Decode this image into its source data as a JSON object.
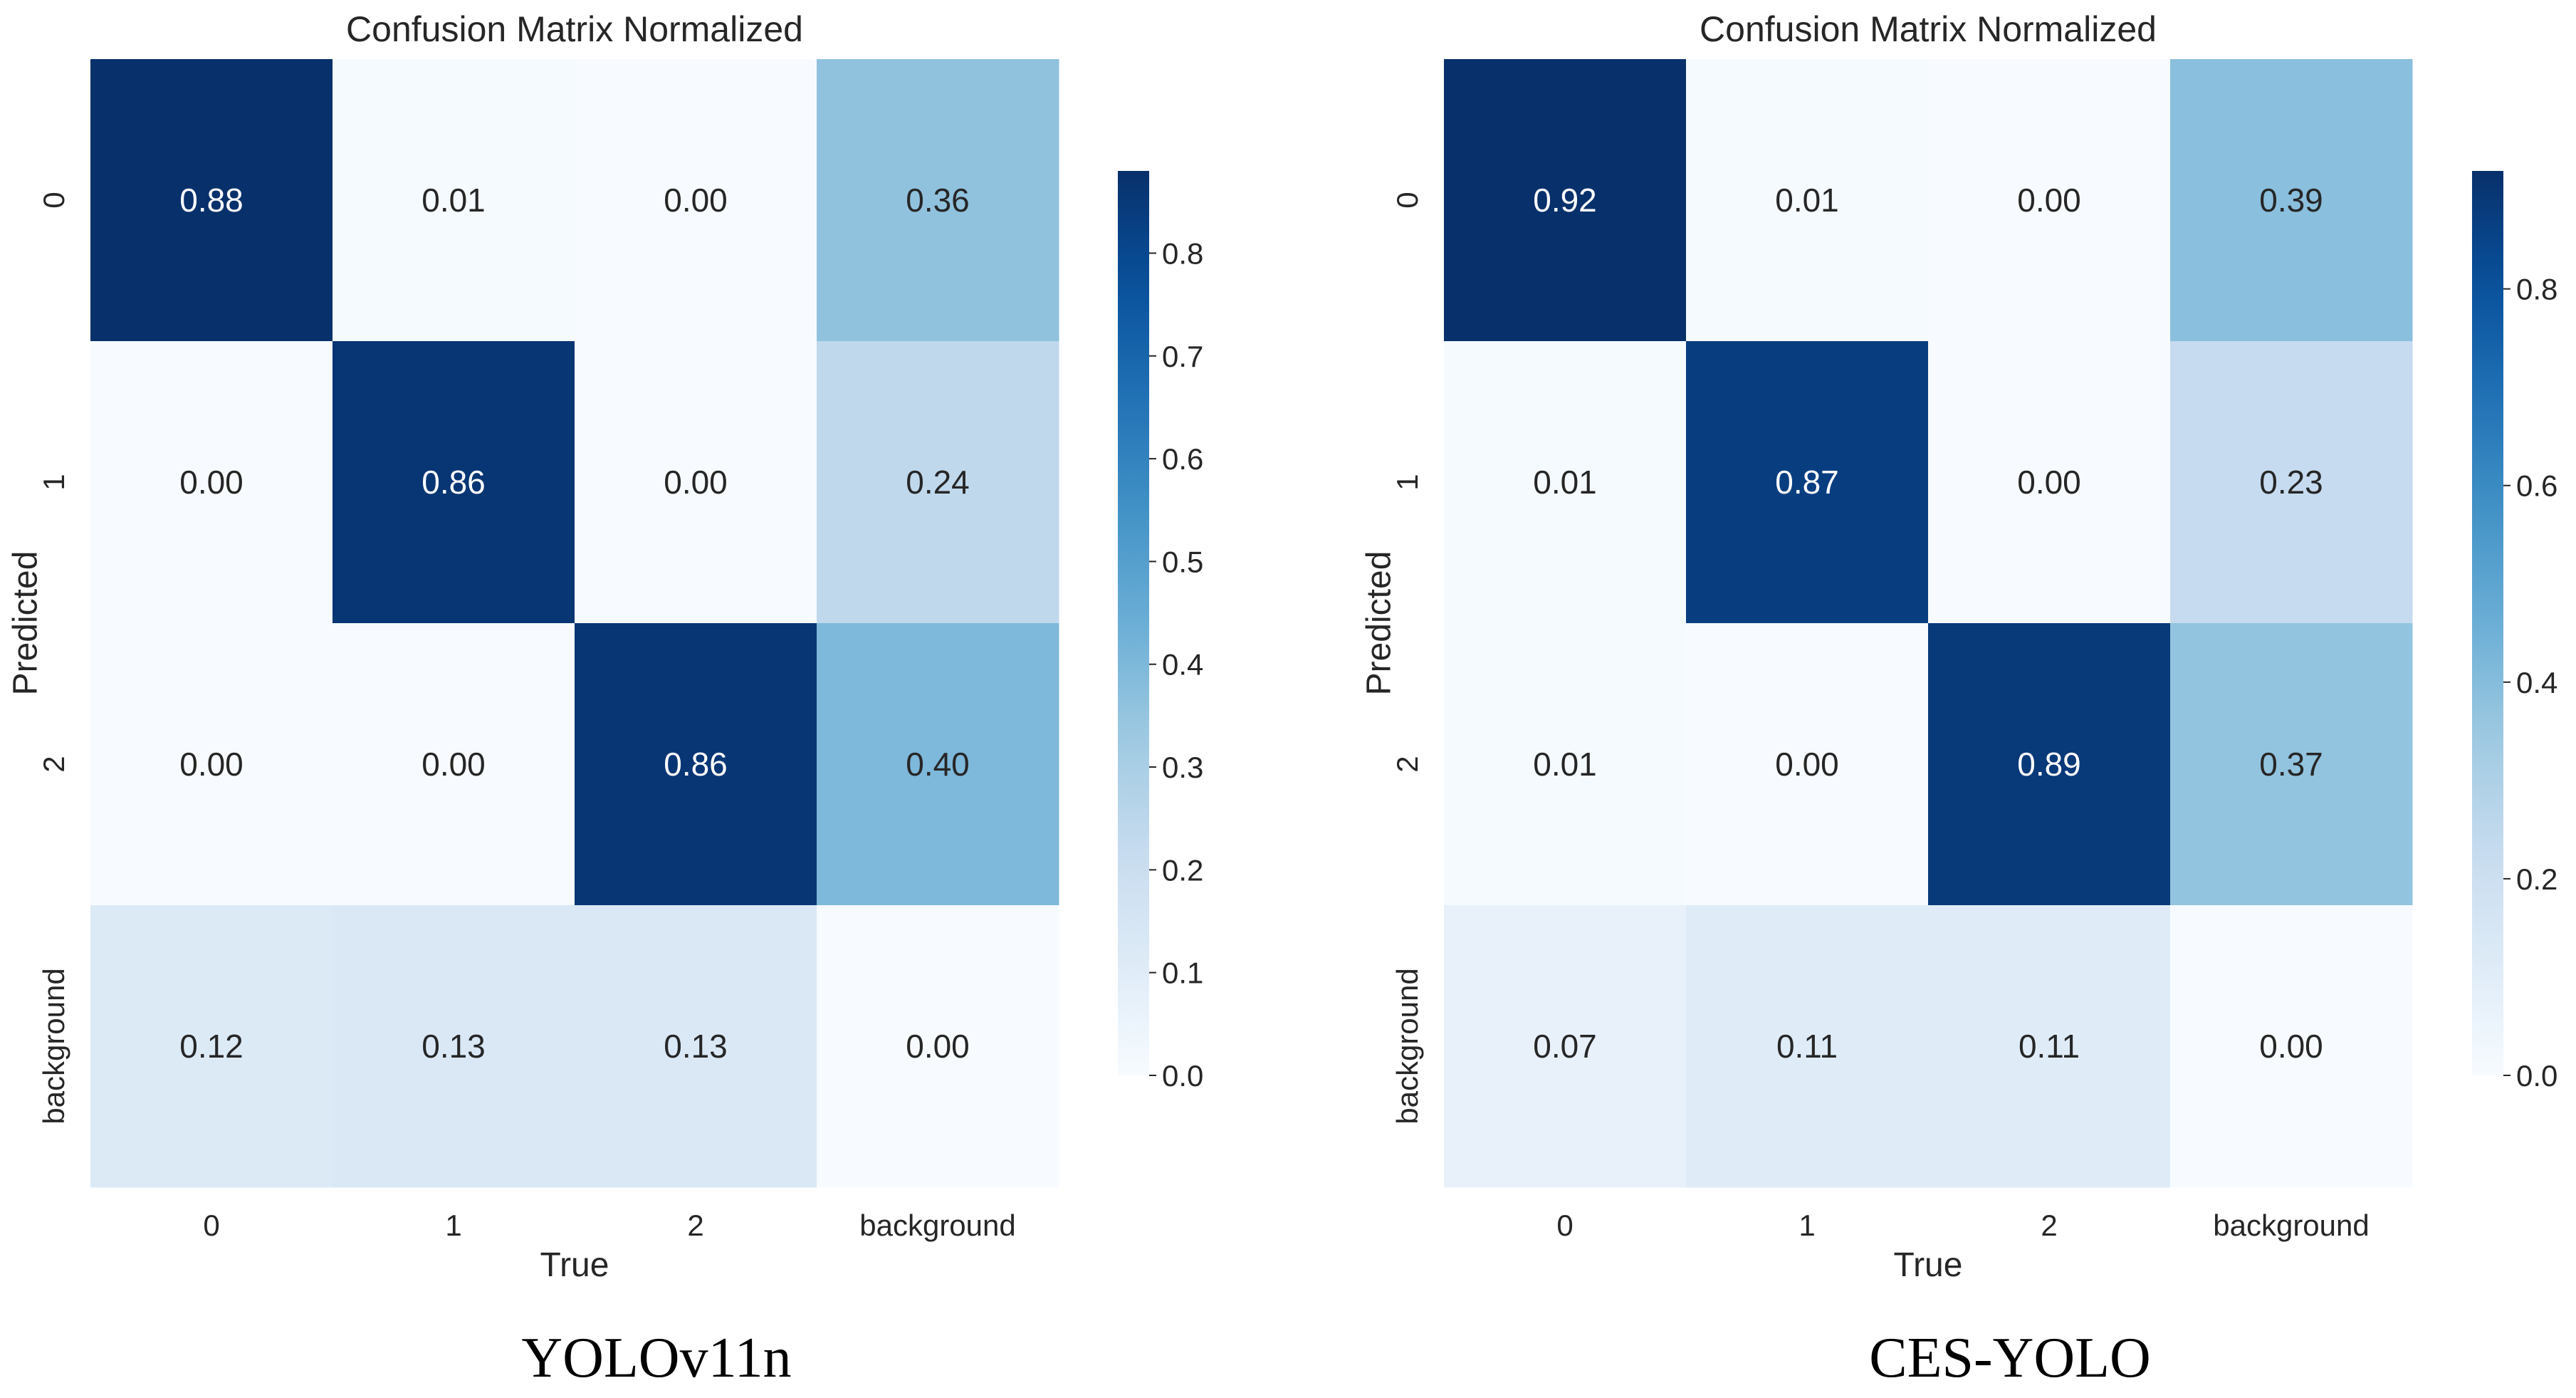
{
  "chart_data": [
    {
      "type": "heatmap",
      "title": "Confusion Matrix Normalized",
      "caption": "YOLOv11n",
      "xlabel": "True",
      "ylabel": "Predicted",
      "x_categories": [
        "0",
        "1",
        "2",
        "background"
      ],
      "y_categories": [
        "0",
        "1",
        "2",
        "background"
      ],
      "values": [
        [
          0.88,
          0.01,
          0.0,
          0.36
        ],
        [
          0.0,
          0.86,
          0.0,
          0.24
        ],
        [
          0.0,
          0.0,
          0.86,
          0.4
        ],
        [
          0.12,
          0.13,
          0.13,
          0.0
        ]
      ],
      "colormap": "Blues",
      "colorbar": {
        "range": [
          0,
          0.88
        ],
        "ticks": [
          0.0,
          0.1,
          0.2,
          0.3,
          0.4,
          0.5,
          0.6,
          0.7,
          0.8
        ],
        "tick_labels": [
          "0.0",
          "0.1",
          "0.2",
          "0.3",
          "0.4",
          "0.5",
          "0.6",
          "0.7",
          "0.8"
        ]
      }
    },
    {
      "type": "heatmap",
      "title": "Confusion Matrix Normalized",
      "caption": "CES-YOLO",
      "xlabel": "True",
      "ylabel": "Predicted",
      "x_categories": [
        "0",
        "1",
        "2",
        "background"
      ],
      "y_categories": [
        "0",
        "1",
        "2",
        "background"
      ],
      "values": [
        [
          0.92,
          0.01,
          0.0,
          0.39
        ],
        [
          0.01,
          0.87,
          0.0,
          0.23
        ],
        [
          0.01,
          0.0,
          0.89,
          0.37
        ],
        [
          0.07,
          0.11,
          0.11,
          0.0
        ]
      ],
      "colormap": "Blues",
      "colorbar": {
        "range": [
          0,
          0.92
        ],
        "ticks": [
          0.0,
          0.2,
          0.4,
          0.6,
          0.8
        ],
        "tick_labels": [
          "0.0",
          "0.2",
          "0.4",
          "0.6",
          "0.8"
        ]
      }
    }
  ]
}
